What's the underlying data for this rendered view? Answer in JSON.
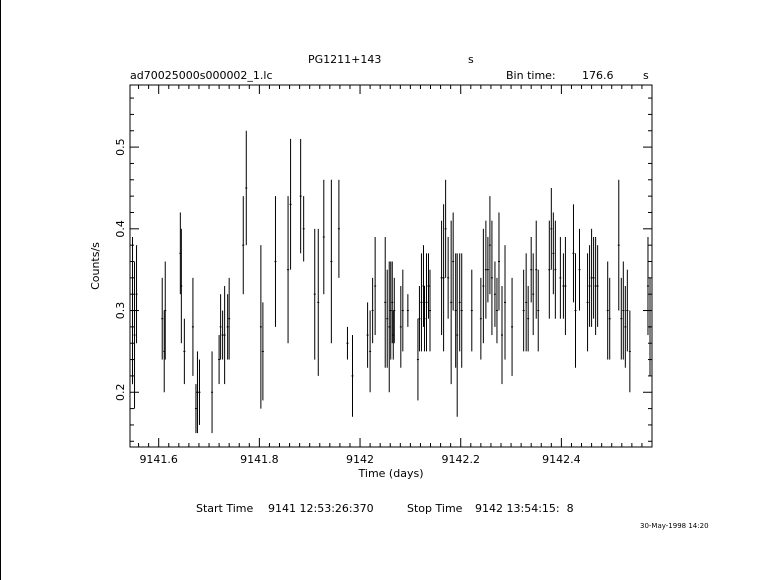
{
  "header": {
    "source_name": "PG1211+143",
    "source_unit": "s",
    "file_name": "ad70025000s000002_1.lc",
    "bin_time_label": "Bin time:",
    "bin_time_value": "176.6",
    "bin_time_unit": "s"
  },
  "footer": {
    "start_label": "Start Time",
    "start_value": "9141 12:53:26:370",
    "stop_label": "Stop Time",
    "stop_value": "9142 13:54:15:  8",
    "timestamp": "30-May-1998 14:20"
  },
  "chart_data": {
    "type": "scatter",
    "title": "PG1211+143",
    "xlabel": "Time (days)",
    "ylabel": "Counts/s",
    "xlim": [
      9141.543,
      9142.58
    ],
    "ylim": [
      0.133,
      0.576
    ],
    "xticks_major": [
      9141.6,
      9141.8,
      9142,
      9142.2,
      9142.4
    ],
    "xtick_labels": [
      "9141.6",
      "9141.8",
      "9142",
      "9142.2",
      "9142.4"
    ],
    "yticks_major": [
      0.2,
      0.3,
      0.4,
      0.5
    ],
    "ytick_labels": [
      "0.2",
      "0.3",
      "0.4",
      "0.5"
    ],
    "grid": false,
    "series": [
      {
        "points": [
          [
            9141.548,
            0.3,
            0.09
          ],
          [
            9141.552,
            0.27,
            0.09
          ],
          [
            9141.556,
            0.32,
            0.06
          ],
          [
            9141.607,
            0.29,
            0.05
          ],
          [
            9141.611,
            0.25,
            0.05
          ],
          [
            9141.613,
            0.3,
            0.06
          ],
          [
            9141.643,
            0.37,
            0.05
          ],
          [
            9141.645,
            0.33,
            0.07
          ],
          [
            9141.651,
            0.25,
            0.04
          ],
          [
            9141.668,
            0.28,
            0.06
          ],
          [
            9141.674,
            0.18,
            0.03
          ],
          [
            9141.677,
            0.2,
            0.05
          ],
          [
            9141.681,
            0.2,
            0.04
          ],
          [
            9141.706,
            0.2,
            0.05
          ],
          [
            9141.72,
            0.24,
            0.03
          ],
          [
            9141.723,
            0.28,
            0.04
          ],
          [
            9141.727,
            0.27,
            0.03
          ],
          [
            9141.731,
            0.27,
            0.06
          ],
          [
            9141.737,
            0.28,
            0.04
          ],
          [
            9141.74,
            0.29,
            0.05
          ],
          [
            9141.768,
            0.38,
            0.06
          ],
          [
            9141.774,
            0.45,
            0.07
          ],
          [
            9141.803,
            0.28,
            0.1
          ],
          [
            9141.807,
            0.25,
            0.06
          ],
          [
            9141.832,
            0.36,
            0.08
          ],
          [
            9141.857,
            0.35,
            0.09
          ],
          [
            9141.862,
            0.43,
            0.08
          ],
          [
            9141.882,
            0.44,
            0.07
          ],
          [
            9141.888,
            0.4,
            0.04
          ],
          [
            9141.91,
            0.32,
            0.08
          ],
          [
            9141.917,
            0.31,
            0.09
          ],
          [
            9141.928,
            0.39,
            0.07
          ],
          [
            9141.943,
            0.36,
            0.1
          ],
          [
            9141.958,
            0.4,
            0.06
          ],
          [
            9141.975,
            0.26,
            0.02
          ],
          [
            9141.985,
            0.22,
            0.05
          ],
          [
            9142.015,
            0.27,
            0.04
          ],
          [
            9142.02,
            0.25,
            0.05
          ],
          [
            9142.025,
            0.3,
            0.04
          ],
          [
            9142.03,
            0.33,
            0.06
          ],
          [
            9142.05,
            0.31,
            0.08
          ],
          [
            9142.054,
            0.29,
            0.06
          ],
          [
            9142.058,
            0.28,
            0.08
          ],
          [
            9142.061,
            0.3,
            0.06
          ],
          [
            9142.064,
            0.31,
            0.05
          ],
          [
            9142.066,
            0.27,
            0.03
          ],
          [
            9142.068,
            0.3,
            0.04
          ],
          [
            9142.081,
            0.28,
            0.05
          ],
          [
            9142.085,
            0.3,
            0.05
          ],
          [
            9142.095,
            0.3,
            0.02
          ],
          [
            9142.115,
            0.24,
            0.05
          ],
          [
            9142.118,
            0.29,
            0.04
          ],
          [
            9142.122,
            0.31,
            0.06
          ],
          [
            9142.126,
            0.33,
            0.05
          ],
          [
            9142.128,
            0.29,
            0.04
          ],
          [
            9142.132,
            0.31,
            0.06
          ],
          [
            9142.136,
            0.33,
            0.04
          ],
          [
            9142.139,
            0.3,
            0.05
          ],
          [
            9142.162,
            0.34,
            0.07
          ],
          [
            9142.166,
            0.34,
            0.09
          ],
          [
            9142.17,
            0.4,
            0.06
          ],
          [
            9142.175,
            0.34,
            0.05
          ],
          [
            9142.181,
            0.31,
            0.1
          ],
          [
            9142.185,
            0.36,
            0.06
          ],
          [
            9142.19,
            0.3,
            0.07
          ],
          [
            9142.193,
            0.27,
            0.1
          ],
          [
            9142.198,
            0.31,
            0.06
          ],
          [
            9142.202,
            0.3,
            0.07
          ],
          [
            9142.222,
            0.3,
            0.05
          ],
          [
            9142.24,
            0.29,
            0.05
          ],
          [
            9142.245,
            0.33,
            0.07
          ],
          [
            9142.25,
            0.35,
            0.06
          ],
          [
            9142.254,
            0.35,
            0.04
          ],
          [
            9142.258,
            0.38,
            0.06
          ],
          [
            9142.262,
            0.34,
            0.07
          ],
          [
            9142.268,
            0.32,
            0.04
          ],
          [
            9142.272,
            0.3,
            0.04
          ],
          [
            9142.276,
            0.36,
            0.06
          ],
          [
            9142.282,
            0.27,
            0.06
          ],
          [
            9142.288,
            0.31,
            0.07
          ],
          [
            9142.302,
            0.28,
            0.06
          ],
          [
            9142.325,
            0.3,
            0.05
          ],
          [
            9142.33,
            0.31,
            0.06
          ],
          [
            9142.334,
            0.29,
            0.04
          ],
          [
            9142.34,
            0.35,
            0.04
          ],
          [
            9142.344,
            0.32,
            0.05
          ],
          [
            9142.35,
            0.35,
            0.06
          ],
          [
            9142.354,
            0.3,
            0.05
          ],
          [
            9142.376,
            0.35,
            0.06
          ],
          [
            9142.38,
            0.4,
            0.05
          ],
          [
            9142.384,
            0.37,
            0.05
          ],
          [
            9142.388,
            0.35,
            0.06
          ],
          [
            9142.398,
            0.34,
            0.05
          ],
          [
            9142.404,
            0.33,
            0.04
          ],
          [
            9142.408,
            0.33,
            0.06
          ],
          [
            9142.424,
            0.37,
            0.06
          ],
          [
            9142.428,
            0.3,
            0.07
          ],
          [
            9142.436,
            0.35,
            0.05
          ],
          [
            9142.452,
            0.31,
            0.06
          ],
          [
            9142.456,
            0.33,
            0.05
          ],
          [
            9142.46,
            0.34,
            0.06
          ],
          [
            9142.464,
            0.34,
            0.05
          ],
          [
            9142.468,
            0.33,
            0.06
          ],
          [
            9142.472,
            0.33,
            0.05
          ],
          [
            9142.492,
            0.3,
            0.06
          ],
          [
            9142.496,
            0.29,
            0.05
          ],
          [
            9142.514,
            0.38,
            0.08
          ],
          [
            9142.519,
            0.29,
            0.05
          ],
          [
            9142.523,
            0.3,
            0.06
          ],
          [
            9142.527,
            0.28,
            0.05
          ],
          [
            9142.531,
            0.3,
            0.05
          ],
          [
            9142.536,
            0.25,
            0.05
          ],
          [
            9142.572,
            0.33,
            0.06
          ],
          [
            9142.576,
            0.28,
            0.06
          ]
        ]
      }
    ]
  }
}
